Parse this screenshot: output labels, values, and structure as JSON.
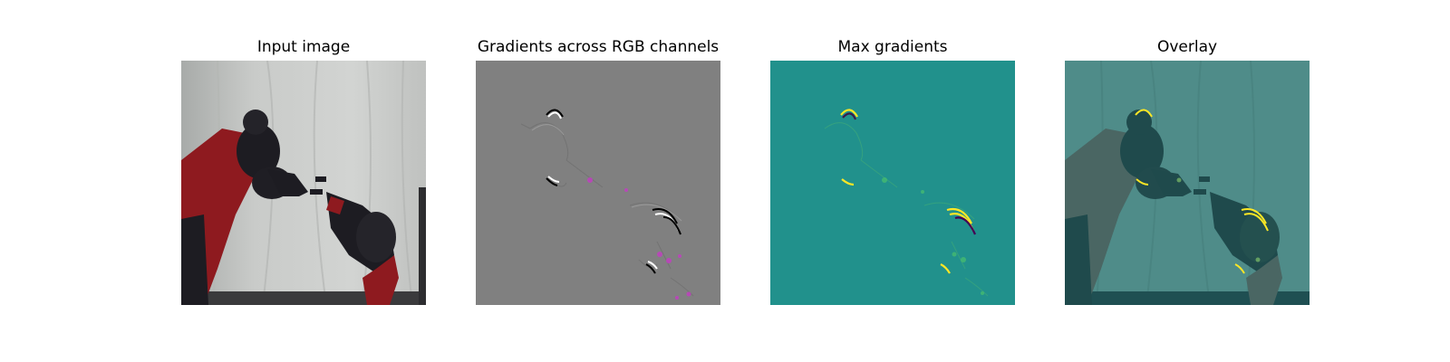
{
  "panels": [
    {
      "title": "Input image"
    },
    {
      "title": "Gradients across RGB channels"
    },
    {
      "title": "Max gradients"
    },
    {
      "title": "Overlay"
    }
  ],
  "colors": {
    "background": "#ffffff",
    "gradient_gray": "#808080",
    "max_gradient_teal": "#21918c",
    "highlight_yellow": "#fde725",
    "robot_red": "#8e1a1f",
    "robot_dark": "#1d1c22",
    "backdrop_gray": "#c8cac8"
  },
  "icons": [
    "robot-arm-photo",
    "rgb-gradient-map",
    "max-gradient-heatmap",
    "overlay-heatmap"
  ]
}
